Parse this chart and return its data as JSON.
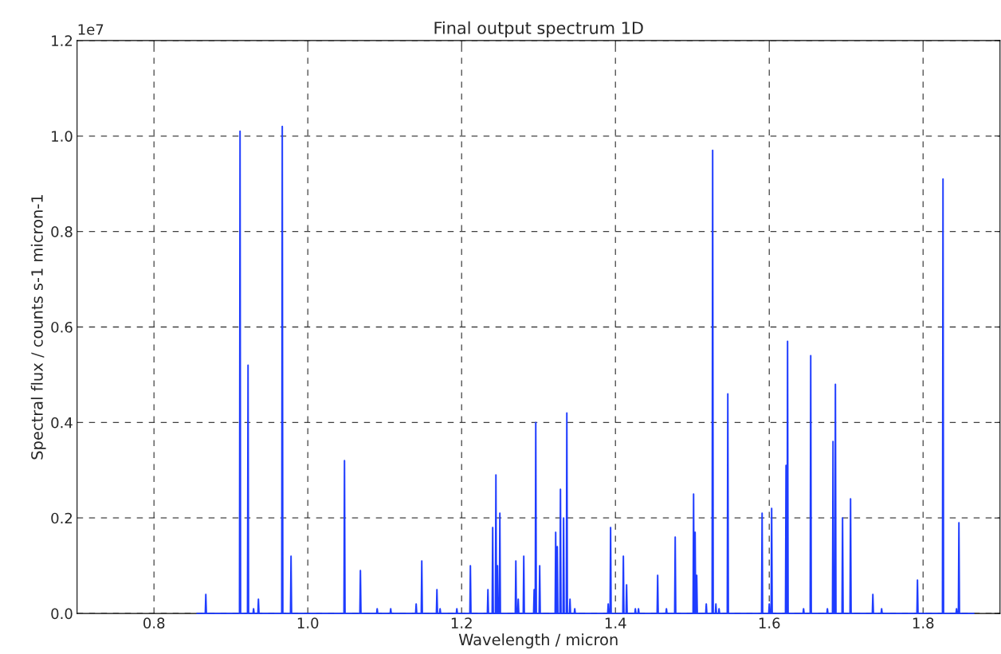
{
  "chart_data": {
    "type": "line",
    "title": "Final output spectrum 1D",
    "xlabel": "Wavelength / micron",
    "ylabel": "Spectral flux / counts s-1 micron-1",
    "annotations": [
      "1e7"
    ],
    "xlim": [
      0.7,
      1.9
    ],
    "xticks": [
      0.8,
      {
        "value": 1,
        "label": "1.0"
      },
      1.2,
      1.4,
      1.6,
      1.8
    ],
    "ylim": [
      0.0,
      1.2
    ],
    "yticks": [
      {
        "value": 0,
        "label": "0.0"
      },
      0.2,
      0.4,
      0.6,
      0.8,
      {
        "value": 1,
        "label": "1.0"
      },
      1.2
    ],
    "grid": true,
    "marker": "none",
    "line_style": "solid",
    "series": [
      {
        "color": "#1e3cff",
        "x": [
          0.856,
          0.8667,
          0.8674,
          0.8681,
          0.9112,
          0.9119,
          0.9126,
          0.9216,
          0.9223,
          0.923,
          0.9288,
          0.9295,
          0.9302,
          0.9351,
          0.9358,
          0.9365,
          0.9661,
          0.9668,
          0.9675,
          0.9775,
          0.9782,
          0.9789,
          1.047,
          1.0477,
          1.0484,
          1.0677,
          1.0684,
          1.0691,
          1.0895,
          1.0902,
          1.0909,
          1.1071,
          1.1078,
          1.1085,
          1.1402,
          1.1409,
          1.1416,
          1.1475,
          1.1482,
          1.1489,
          1.1672,
          1.1679,
          1.1686,
          1.1713,
          1.172,
          1.1727,
          1.1931,
          1.1938,
          1.1945,
          1.2107,
          1.2114,
          1.2121,
          1.2335,
          1.2342,
          1.2349,
          1.2397,
          1.2404,
          1.2411,
          1.2439,
          1.2446,
          1.2453,
          1.2459,
          1.2466,
          1.2473,
          1.249,
          1.2497,
          1.2504,
          1.2698,
          1.2705,
          1.2712,
          1.2729,
          1.2736,
          1.2743,
          1.2801,
          1.2808,
          1.2815,
          1.2936,
          1.2943,
          1.295,
          1.2957,
          1.2964,
          1.2971,
          1.3008,
          1.3015,
          1.3022,
          1.3216,
          1.3223,
          1.323,
          1.3237,
          1.3244,
          1.3251,
          1.3278,
          1.3285,
          1.3292,
          1.3319,
          1.3326,
          1.3333,
          1.3361,
          1.3368,
          1.3375,
          1.3402,
          1.3409,
          1.3416,
          1.3464,
          1.3471,
          1.3478,
          1.3899,
          1.3906,
          1.3913,
          1.393,
          1.3937,
          1.3944,
          1.4096,
          1.4103,
          1.411,
          1.4138,
          1.4145,
          1.4152,
          1.4252,
          1.4259,
          1.4266,
          1.4293,
          1.43,
          1.4307,
          1.4542,
          1.4549,
          1.4556,
          1.4656,
          1.4663,
          1.467,
          1.477,
          1.4777,
          1.4784,
          1.5009,
          1.5016,
          1.5023,
          1.5029,
          1.5036,
          1.5043,
          1.505,
          1.5057,
          1.5064,
          1.5174,
          1.5181,
          1.5188,
          1.5257,
          1.5264,
          1.5271,
          1.5299,
          1.5306,
          1.5313,
          1.534,
          1.5347,
          1.5354,
          1.5454,
          1.5461,
          1.5468,
          1.59,
          1.5907,
          1.5914,
          1.5993,
          1.6,
          1.6007,
          1.6024,
          1.6031,
          1.6038,
          1.6211,
          1.6218,
          1.6225,
          1.6231,
          1.6238,
          1.6245,
          1.6439,
          1.6446,
          1.6453,
          1.6532,
          1.6539,
          1.6546,
          1.6749,
          1.6756,
          1.6763,
          1.6822,
          1.6829,
          1.6836,
          1.6853,
          1.686,
          1.6867,
          1.6946,
          1.6953,
          1.696,
          1.705,
          1.7057,
          1.7064,
          1.734,
          1.7347,
          1.7354,
          1.7454,
          1.7461,
          1.7468,
          1.792,
          1.7927,
          1.7934,
          1.8252,
          1.8259,
          1.8266,
          1.8428,
          1.8435,
          1.8442,
          1.8459,
          1.8466,
          1.8473,
          1.866
        ],
        "values": [
          0,
          0,
          0.04,
          0,
          0,
          1.01,
          0,
          0,
          0.52,
          0,
          0,
          0.01,
          0,
          0,
          0.03,
          0,
          0,
          1.02,
          0,
          0,
          0.12,
          0,
          0,
          0.32,
          0,
          0,
          0.09,
          0,
          0,
          0.01,
          0,
          0,
          0.01,
          0,
          0,
          0.02,
          0,
          0,
          0.11,
          0,
          0,
          0.05,
          0,
          0,
          0.01,
          0,
          0,
          0.01,
          0,
          0,
          0.1,
          0,
          0,
          0.05,
          0,
          0,
          0.18,
          0,
          0,
          0.29,
          0,
          0,
          0.1,
          0,
          0,
          0.21,
          0,
          0,
          0.11,
          0,
          0,
          0.03,
          0,
          0,
          0.12,
          0,
          0,
          0.05,
          0,
          0,
          0.4,
          0,
          0,
          0.1,
          0,
          0,
          0.17,
          0,
          0,
          0.14,
          0,
          0,
          0.26,
          0,
          0,
          0.2,
          0,
          0,
          0.42,
          0,
          0,
          0.03,
          0,
          0,
          0.01,
          0,
          0,
          0.02,
          0,
          0,
          0.18,
          0,
          0,
          0.12,
          0,
          0,
          0.06,
          0,
          0,
          0.01,
          0,
          0,
          0.01,
          0,
          0,
          0.08,
          0,
          0,
          0.01,
          0,
          0,
          0.16,
          0,
          0,
          0.25,
          0,
          0,
          0.17,
          0,
          0,
          0.08,
          0,
          0,
          0.02,
          0,
          0,
          0.97,
          0,
          0,
          0.02,
          0,
          0,
          0.01,
          0,
          0,
          0.46,
          0,
          0,
          0.21,
          0,
          0,
          0.02,
          0,
          0,
          0.22,
          0,
          0,
          0.31,
          0,
          0,
          0.57,
          0,
          0,
          0.01,
          0,
          0,
          0.54,
          0,
          0,
          0.01,
          0,
          0,
          0.36,
          0,
          0,
          0.48,
          0,
          0,
          0.2,
          0,
          0,
          0.24,
          0,
          0,
          0.04,
          0,
          0,
          0.01,
          0,
          0,
          0.07,
          0,
          0,
          0.91,
          0,
          0,
          0.01,
          0,
          0,
          0.19,
          0,
          0
        ]
      }
    ]
  }
}
